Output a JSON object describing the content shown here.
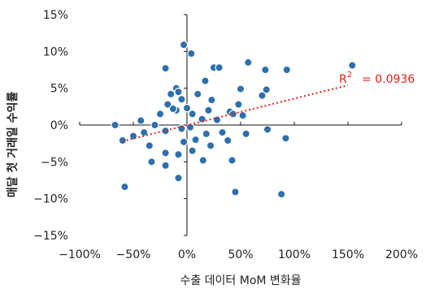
{
  "chart_data": {
    "type": "scatter",
    "xlabel": "수출 데이터 MoM 변화율",
    "ylabel": "매달 첫 거래일 수익률",
    "xlim": [
      -100,
      200
    ],
    "ylim": [
      -15,
      15
    ],
    "x_ticks": [
      -100,
      -50,
      0,
      50,
      100,
      150,
      200
    ],
    "y_ticks": [
      -15,
      -10,
      -5,
      0,
      5,
      10,
      15
    ],
    "x_tick_labels": [
      "−100%",
      "−50%",
      "0%",
      "50%",
      "100%",
      "150%",
      "200%"
    ],
    "y_tick_labels": [
      "−15%",
      "−10%",
      "−5%",
      "0%",
      "5%",
      "10%",
      "15%"
    ],
    "point_color": "#2e6fac",
    "trendline_color": "#e0201a",
    "trendline": {
      "x": [
        -60,
        150
      ],
      "y": [
        -2.2,
        5.4
      ]
    },
    "r2_label": "R",
    "r2_sup": "2",
    "r2_value": "= 0.0936",
    "points": [
      [
        -3,
        10.9
      ],
      [
        4,
        9.7
      ],
      [
        57,
        8.5
      ],
      [
        154,
        8.1
      ],
      [
        -20,
        7.7
      ],
      [
        25,
        7.8
      ],
      [
        30,
        7.8
      ],
      [
        73,
        7.5
      ],
      [
        93,
        7.5
      ],
      [
        50,
        4.9
      ],
      [
        74,
        4.8
      ],
      [
        17,
        6.0
      ],
      [
        -10,
        5.0
      ],
      [
        -8,
        4.5
      ],
      [
        -15,
        4.2
      ],
      [
        10,
        4.2
      ],
      [
        23,
        3.4
      ],
      [
        -5,
        3.5
      ],
      [
        -25,
        1.5
      ],
      [
        -10,
        2.0
      ],
      [
        0,
        2.3
      ],
      [
        -18,
        2.8
      ],
      [
        -13,
        2.2
      ],
      [
        20,
        2.0
      ],
      [
        40,
        1.8
      ],
      [
        48,
        2.8
      ],
      [
        43,
        1.5
      ],
      [
        52,
        1.3
      ],
      [
        5,
        1.5
      ],
      [
        14,
        0.8
      ],
      [
        28,
        0.7
      ],
      [
        70,
        4.0
      ],
      [
        -43,
        0.6
      ],
      [
        -30,
        0.0
      ],
      [
        -67,
        0.0
      ],
      [
        -60,
        -2.1
      ],
      [
        -40,
        -1.0
      ],
      [
        -35,
        -2.8
      ],
      [
        -50,
        -1.5
      ],
      [
        -20,
        -0.8
      ],
      [
        -5,
        -0.5
      ],
      [
        3,
        -0.3
      ],
      [
        18,
        -1.2
      ],
      [
        33,
        -1.0
      ],
      [
        55,
        -1.2
      ],
      [
        75,
        -0.6
      ],
      [
        92,
        -1.8
      ],
      [
        -3,
        -2.3
      ],
      [
        8,
        -2.0
      ],
      [
        22,
        -2.8
      ],
      [
        38,
        -2.1
      ],
      [
        -20,
        -3.8
      ],
      [
        -8,
        -4.0
      ],
      [
        5,
        -3.5
      ],
      [
        15,
        -4.8
      ],
      [
        -33,
        -5.0
      ],
      [
        -20,
        -5.5
      ],
      [
        -8,
        -7.2
      ],
      [
        42,
        -4.8
      ],
      [
        45,
        -9.1
      ],
      [
        88,
        -9.4
      ],
      [
        -58,
        -8.4
      ]
    ]
  }
}
